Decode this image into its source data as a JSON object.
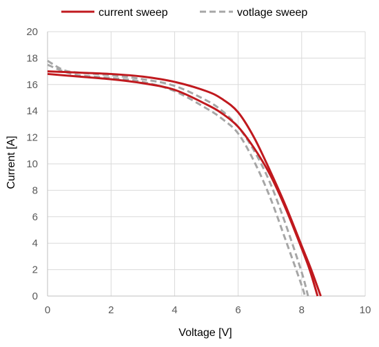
{
  "chart_data": {
    "type": "line",
    "xlabel": "Voltage [V]",
    "ylabel": "Current [A]",
    "xlim": [
      0,
      10
    ],
    "ylim": [
      0,
      20
    ],
    "xticks": [
      0,
      2,
      4,
      6,
      8,
      10
    ],
    "yticks": [
      0,
      2,
      4,
      6,
      8,
      10,
      12,
      14,
      16,
      18,
      20
    ],
    "grid": true,
    "legend_position": "top",
    "series": [
      {
        "name": "current sweep",
        "color": "#C0191E",
        "style": "solid",
        "curves": [
          [
            [
              0,
              17.0
            ],
            [
              1,
              16.9
            ],
            [
              2,
              16.8
            ],
            [
              3,
              16.6
            ],
            [
              4,
              16.2
            ],
            [
              5,
              15.5
            ],
            [
              5.5,
              14.9
            ],
            [
              6,
              13.9
            ],
            [
              6.5,
              12.0
            ],
            [
              7,
              9.5
            ],
            [
              7.5,
              6.8
            ],
            [
              8,
              3.8
            ],
            [
              8.3,
              2.0
            ],
            [
              8.6,
              0
            ]
          ],
          [
            [
              0,
              16.8
            ],
            [
              1,
              16.6
            ],
            [
              2,
              16.4
            ],
            [
              3,
              16.1
            ],
            [
              4,
              15.6
            ],
            [
              5,
              14.5
            ],
            [
              5.5,
              13.8
            ],
            [
              6,
              12.8
            ],
            [
              6.5,
              11.2
            ],
            [
              7,
              9.2
            ],
            [
              7.5,
              6.6
            ],
            [
              8,
              3.6
            ],
            [
              8.25,
              2.0
            ],
            [
              8.5,
              0
            ]
          ]
        ]
      },
      {
        "name": "votlage sweep",
        "color": "#A6A6A6",
        "style": "dashed",
        "curves": [
          [
            [
              0,
              17.8
            ],
            [
              0.5,
              17.1
            ],
            [
              1,
              16.9
            ],
            [
              2,
              16.7
            ],
            [
              3,
              16.4
            ],
            [
              4,
              15.9
            ],
            [
              5,
              14.8
            ],
            [
              5.5,
              14.0
            ],
            [
              6,
              12.8
            ],
            [
              6.5,
              11.0
            ],
            [
              7,
              8.6
            ],
            [
              7.5,
              5.4
            ],
            [
              8,
              1.8
            ],
            [
              8.2,
              0
            ]
          ],
          [
            [
              0,
              17.5
            ],
            [
              0.5,
              17.0
            ],
            [
              1,
              16.7
            ],
            [
              2,
              16.5
            ],
            [
              3,
              16.2
            ],
            [
              4,
              15.5
            ],
            [
              5,
              14.2
            ],
            [
              5.5,
              13.4
            ],
            [
              6,
              12.3
            ],
            [
              6.5,
              10.2
            ],
            [
              7,
              7.5
            ],
            [
              7.5,
              4.2
            ],
            [
              8,
              0.8
            ],
            [
              8.1,
              0
            ]
          ]
        ]
      }
    ]
  }
}
